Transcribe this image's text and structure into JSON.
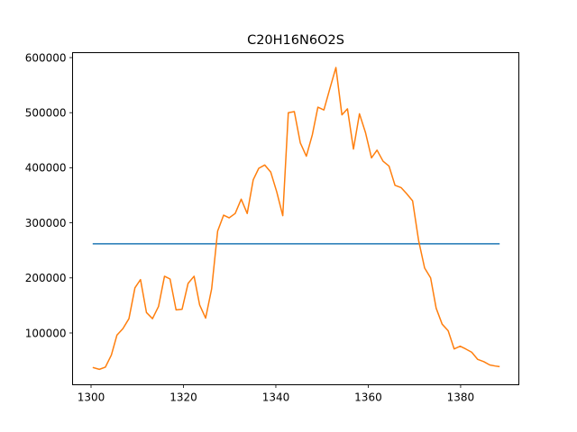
{
  "chart_data": {
    "type": "line",
    "title": "C20H16N6O2S",
    "xlabel": "",
    "ylabel": "",
    "xlim": [
      1296.0,
      1392.6
    ],
    "ylim": [
      6000,
      609000
    ],
    "x_ticks": [
      1300,
      1320,
      1340,
      1360,
      1380
    ],
    "y_ticks": [
      100000,
      200000,
      300000,
      400000,
      500000,
      600000
    ],
    "x_tick_labels": [
      "1300",
      "1320",
      "1340",
      "1360",
      "1380"
    ],
    "y_tick_labels": [
      "100000",
      "200000",
      "300000",
      "400000",
      "500000",
      "600000"
    ],
    "grid": false,
    "legend": "none",
    "series": [
      {
        "color": "#1f77b4",
        "points": [
          [
            1300.5,
            262000
          ],
          [
            1388.3,
            262000
          ]
        ]
      },
      {
        "color": "#ff7f0e",
        "points": [
          [
            1300.5,
            37000
          ],
          [
            1301.8,
            34000
          ],
          [
            1303.1,
            38000
          ],
          [
            1304.4,
            60000
          ],
          [
            1305.6,
            96000
          ],
          [
            1306.9,
            108000
          ],
          [
            1308.2,
            126000
          ],
          [
            1309.5,
            182000
          ],
          [
            1310.7,
            197000
          ],
          [
            1312.0,
            137000
          ],
          [
            1313.3,
            126000
          ],
          [
            1314.6,
            148000
          ],
          [
            1315.9,
            203000
          ],
          [
            1317.1,
            198000
          ],
          [
            1318.4,
            142000
          ],
          [
            1319.7,
            143000
          ],
          [
            1321.0,
            190000
          ],
          [
            1322.3,
            203000
          ],
          [
            1323.5,
            151000
          ],
          [
            1324.8,
            127000
          ],
          [
            1326.1,
            180000
          ],
          [
            1327.4,
            285000
          ],
          [
            1328.7,
            314000
          ],
          [
            1329.9,
            309000
          ],
          [
            1331.2,
            317000
          ],
          [
            1332.5,
            343000
          ],
          [
            1333.8,
            317000
          ],
          [
            1335.1,
            378000
          ],
          [
            1336.3,
            399000
          ],
          [
            1337.6,
            405000
          ],
          [
            1338.9,
            392000
          ],
          [
            1340.2,
            356000
          ],
          [
            1341.5,
            313000
          ],
          [
            1342.7,
            500000
          ],
          [
            1344.0,
            502000
          ],
          [
            1345.3,
            445000
          ],
          [
            1346.6,
            421000
          ],
          [
            1347.9,
            460000
          ],
          [
            1349.1,
            510000
          ],
          [
            1350.4,
            505000
          ],
          [
            1351.7,
            544000
          ],
          [
            1353.0,
            582000
          ],
          [
            1354.3,
            496000
          ],
          [
            1355.5,
            507000
          ],
          [
            1356.8,
            434000
          ],
          [
            1358.1,
            498000
          ],
          [
            1359.4,
            464000
          ],
          [
            1360.7,
            418000
          ],
          [
            1361.9,
            432000
          ],
          [
            1363.2,
            412000
          ],
          [
            1364.5,
            403000
          ],
          [
            1365.8,
            368000
          ],
          [
            1367.1,
            364000
          ],
          [
            1368.3,
            353000
          ],
          [
            1369.6,
            340000
          ],
          [
            1370.9,
            268000
          ],
          [
            1372.2,
            218000
          ],
          [
            1373.5,
            200000
          ],
          [
            1374.7,
            145000
          ],
          [
            1376.0,
            116000
          ],
          [
            1377.3,
            104000
          ],
          [
            1378.6,
            71000
          ],
          [
            1379.9,
            76000
          ],
          [
            1381.1,
            71000
          ],
          [
            1382.4,
            65000
          ],
          [
            1383.7,
            52000
          ],
          [
            1385.0,
            48000
          ],
          [
            1386.3,
            42000
          ],
          [
            1387.5,
            40000
          ],
          [
            1388.3,
            39000
          ]
        ]
      }
    ]
  }
}
